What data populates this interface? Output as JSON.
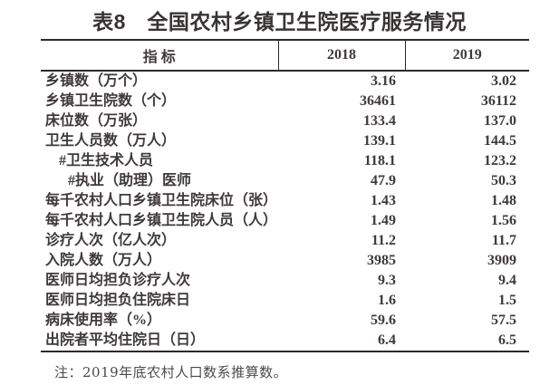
{
  "title": "表8　全国农村乡镇卫生院医疗服务情况",
  "note": "注：2019年底农村人口数系推算数。",
  "colors": {
    "text": "#3f393a",
    "title_text": "#383434",
    "border": "#2b292a",
    "background": "#ffffff"
  },
  "table": {
    "columns": [
      "指 标",
      "2018",
      "2019"
    ],
    "rows": [
      {
        "label": "乡镇数（万个）",
        "y2018": "3.16",
        "y2019": "3.02"
      },
      {
        "label": "乡镇卫生院数（个）",
        "y2018": "36461",
        "y2019": "36112"
      },
      {
        "label": "床位数（万张）",
        "y2018": "133.4",
        "y2019": "137.0"
      },
      {
        "label": "卫生人员数（万人）",
        "y2018": "139.1",
        "y2019": "144.5"
      },
      {
        "label": "#卫生技术人员",
        "y2018": "118.1",
        "y2019": "123.2"
      },
      {
        "label": "#执业（助理）医师",
        "y2018": "47.9",
        "y2019": "50.3"
      },
      {
        "label": "每千农村人口乡镇卫生院床位（张）",
        "y2018": "1.43",
        "y2019": "1.48"
      },
      {
        "label": "每千农村人口乡镇卫生院人员（人）",
        "y2018": "1.49",
        "y2019": "1.56"
      },
      {
        "label": "诊疗人次（亿人次）",
        "y2018": "11.2",
        "y2019": "11.7"
      },
      {
        "label": "入院人数（万人）",
        "y2018": "3985",
        "y2019": "3909"
      },
      {
        "label": "医师日均担负诊疗人次",
        "y2018": "9.3",
        "y2019": "9.4"
      },
      {
        "label": "医师日均担负住院床日",
        "y2018": "1.6",
        "y2019": "1.5"
      },
      {
        "label": "病床使用率（%）",
        "y2018": "59.6",
        "y2019": "57.5"
      },
      {
        "label": "出院者平均住院日（日）",
        "y2018": "6.4",
        "y2019": "6.5"
      }
    ]
  }
}
